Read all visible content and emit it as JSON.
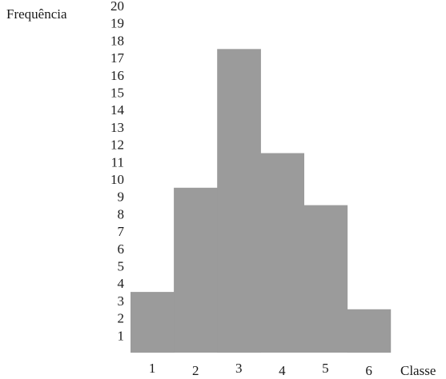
{
  "chart_data": {
    "type": "bar",
    "subtype": "histogram",
    "categories": [
      "1",
      "2",
      "3",
      "4",
      "5",
      "6"
    ],
    "values": [
      3.5,
      9.5,
      17.5,
      11.5,
      8.5,
      2.5
    ],
    "ylabel": "Frequência",
    "xlabel": "Classe",
    "yticks": [
      "1",
      "2",
      "3",
      "4",
      "5",
      "6",
      "7",
      "8",
      "9",
      "10",
      "11",
      "12",
      "13",
      "14",
      "15",
      "16",
      "17",
      "18",
      "19",
      "20"
    ],
    "ylim": [
      0,
      20
    ],
    "grid": false,
    "bar_color": "#9b9b9b"
  }
}
